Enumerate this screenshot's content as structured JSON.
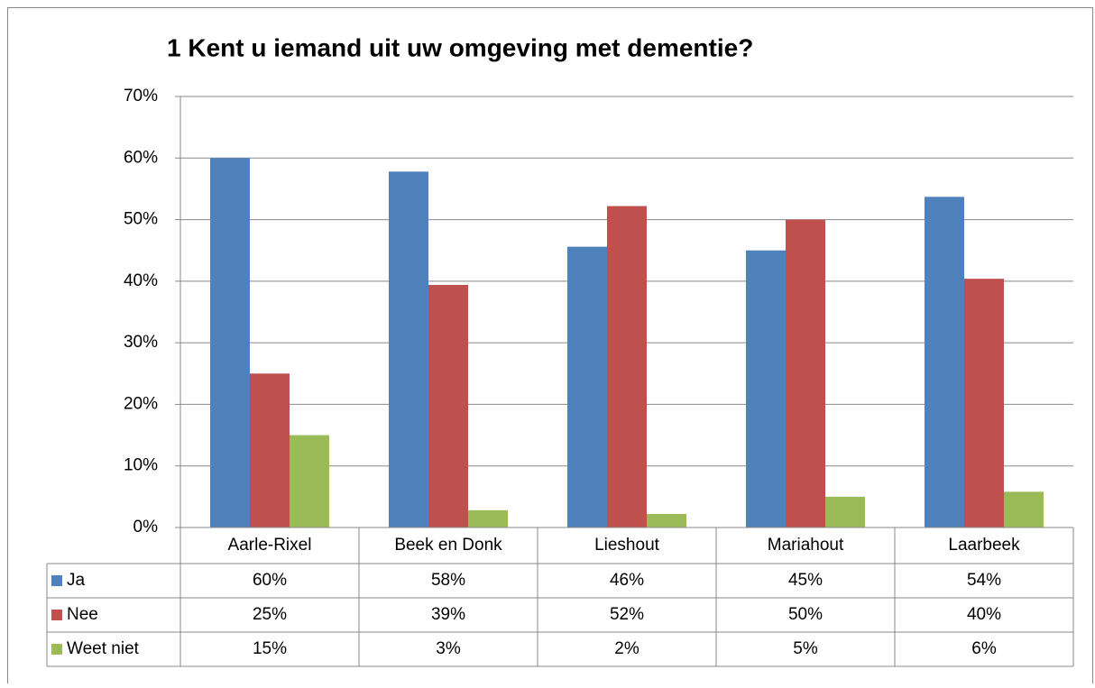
{
  "chart_data": {
    "type": "bar",
    "title": "1 Kent u iemand uit uw omgeving met dementie?",
    "categories": [
      "Aarle-Rixel",
      "Beek en Donk",
      "Lieshout",
      "Mariahout",
      "Laarbeek"
    ],
    "series": [
      {
        "name": "Ja",
        "color": "#4f81bd",
        "values": [
          60,
          57.8,
          45.6,
          45,
          53.7
        ],
        "value_labels": [
          "60%",
          "58%",
          "46%",
          "45%",
          "54%"
        ]
      },
      {
        "name": "Nee",
        "color": "#c0504d",
        "values": [
          25,
          39.4,
          52.2,
          50,
          40.4
        ],
        "value_labels": [
          "25%",
          "39%",
          "52%",
          "50%",
          "40%"
        ]
      },
      {
        "name": "Weet niet",
        "color": "#9bbb59",
        "values": [
          15,
          2.8,
          2.2,
          5,
          5.8
        ],
        "value_labels": [
          "15%",
          "3%",
          "2%",
          "5%",
          "6%"
        ]
      }
    ],
    "ylim": [
      0,
      70
    ],
    "yticks": [
      {
        "value": 0,
        "label": "0%"
      },
      {
        "value": 10,
        "label": "10%"
      },
      {
        "value": 20,
        "label": "20%"
      },
      {
        "value": 30,
        "label": "30%"
      },
      {
        "value": 40,
        "label": "40%"
      },
      {
        "value": 50,
        "label": "50%"
      },
      {
        "value": 60,
        "label": "60%"
      },
      {
        "value": 70,
        "label": "70%"
      }
    ],
    "grid": true
  }
}
